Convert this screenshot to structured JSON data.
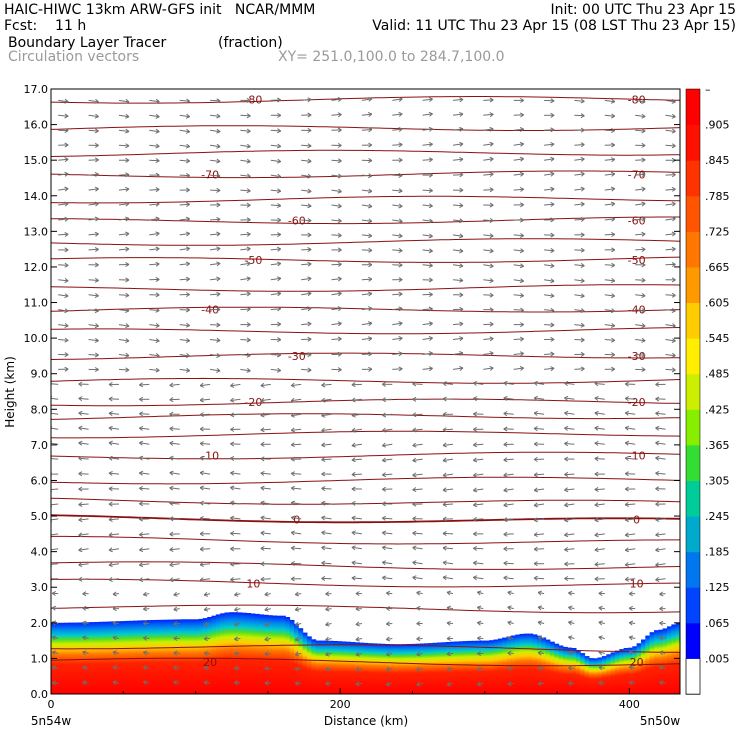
{
  "header": {
    "line1_left": "HAIC-HIWC 13km ARW-GFS init   NCAR/MMM",
    "line1_right": "Init: 00 UTC Thu 23 Apr 15",
    "line2_left": "Fcst:    11 h",
    "line2_right": "Valid: 11 UTC Thu 23 Apr 15 (08 LST Thu 23 Apr 15)",
    "line3_field": "Boundary Layer Tracer",
    "line3_units": "(fraction)",
    "line4_field": "Circulation vectors",
    "line4_xy": "XY= 251.0,100.0 to 284.7,100.0"
  },
  "chart_data": {
    "type": "heatmap",
    "title": "Boundary Layer Tracer",
    "units": "(fraction)",
    "xlabel": "Distance (km)",
    "ylabel": "Height (km)",
    "xlim": [
      0,
      435
    ],
    "ylim": [
      0,
      17
    ],
    "x_ticks": [
      0,
      200,
      400
    ],
    "x_tick_labels": [
      "0",
      "200",
      "400"
    ],
    "y_ticks": [
      0,
      1,
      2,
      3,
      4,
      5,
      6,
      7,
      8,
      9,
      10,
      11,
      12,
      13,
      14,
      15,
      16,
      17
    ],
    "y_tick_labels": [
      "0.0",
      "1.0",
      "2.0",
      "3.0",
      "4.0",
      "5.0",
      "6.0",
      "7.0",
      "8.0",
      "9.0",
      "10.0",
      "11.0",
      "12.0",
      "13.0",
      "14.0",
      "15.0",
      "16.0",
      "17.0"
    ],
    "x_endpoint_labels": [
      "5n54w",
      "5n50w"
    ],
    "boundary_layer_top": {
      "x": [
        0,
        100,
        125,
        160,
        185,
        240,
        300,
        330,
        360,
        375,
        400,
        420,
        435
      ],
      "height": [
        2.0,
        2.1,
        2.3,
        2.2,
        1.5,
        1.4,
        1.5,
        1.7,
        1.3,
        1.0,
        1.3,
        1.8,
        2.0
      ]
    },
    "colorbar": {
      "values": [
        0.005,
        0.065,
        0.125,
        0.185,
        0.245,
        0.305,
        0.365,
        0.425,
        0.485,
        0.545,
        0.605,
        0.665,
        0.725,
        0.785,
        0.845,
        0.905
      ],
      "labels": [
        ".005",
        ".065",
        ".125",
        ".185",
        ".245",
        ".305",
        ".365",
        ".425",
        ".485",
        ".545",
        ".605",
        ".665",
        ".725",
        ".785",
        ".845",
        ".905"
      ],
      "top_label": "–"
    },
    "temperature_contours": {
      "label_values": [
        20,
        10,
        0,
        -10,
        -20,
        -30,
        -40,
        -50,
        -60,
        -70,
        -80
      ],
      "labels": [
        "20",
        "10",
        "0",
        "-10",
        "-20",
        "-30",
        "-40",
        "-50",
        "-60",
        "-70",
        "-80"
      ],
      "label_heights": [
        0.9,
        3.1,
        4.9,
        6.7,
        8.2,
        9.5,
        10.8,
        12.2,
        13.3,
        14.6,
        16.7
      ]
    },
    "colors": {
      "contour": "#8a1010",
      "vector": "#6e6e6e",
      "frame": "#000000"
    }
  }
}
